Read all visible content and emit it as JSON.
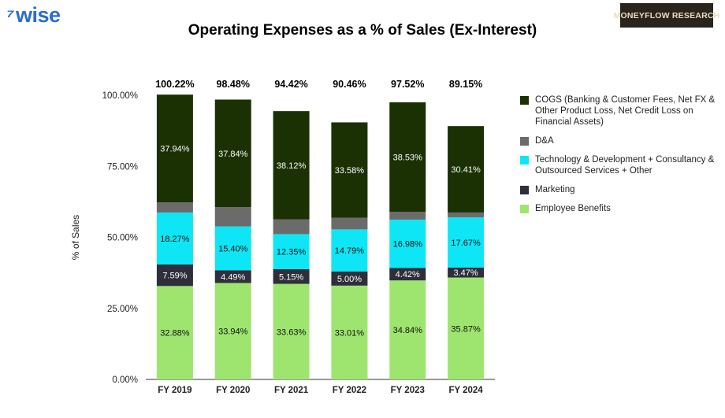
{
  "logos": {
    "wise": "wise",
    "moneyflow": "MONEYFLOW RESEARCH"
  },
  "chart_data": {
    "type": "stacked_bar",
    "title": "Operating Expenses as a % of Sales (Ex-Interest)",
    "ylabel": "% of Sales",
    "ylim": [
      0,
      100
    ],
    "yticks": [
      "0.00%",
      "25.00%",
      "50.00%",
      "75.00%",
      "100.00%"
    ],
    "categories": [
      "FY 2019",
      "FY 2020",
      "FY 2021",
      "FY 2022",
      "FY 2023",
      "FY 2024"
    ],
    "totals": [
      "100.22%",
      "98.48%",
      "94.42%",
      "90.46%",
      "97.52%",
      "89.15%"
    ],
    "series": [
      {
        "name": "Employee Benefits",
        "color": "#9de56f",
        "values": [
          32.88,
          33.94,
          33.63,
          33.01,
          34.84,
          35.87
        ],
        "labels": [
          "32.88%",
          "33.94%",
          "33.63%",
          "33.01%",
          "34.84%",
          "35.87%"
        ]
      },
      {
        "name": "Marketing",
        "color": "#2e2f3a",
        "values": [
          7.59,
          4.49,
          5.15,
          5.0,
          4.42,
          3.47
        ],
        "labels": [
          "7.59%",
          "4.49%",
          "5.15%",
          "5.00%",
          "4.42%",
          "3.47%"
        ]
      },
      {
        "name": "Technology & Development + Consultancy & Outsourced Services + Other",
        "color": "#0ee6f5",
        "values": [
          18.27,
          15.4,
          12.35,
          14.79,
          16.98,
          17.67
        ],
        "labels": [
          "18.27%",
          "15.40%",
          "12.35%",
          "14.79%",
          "16.98%",
          "17.67%"
        ]
      },
      {
        "name": "D&A",
        "color": "#6b6b6b",
        "values": [
          3.54,
          6.81,
          5.17,
          4.08,
          2.75,
          1.73
        ],
        "labels": [
          "",
          "",
          "",
          "",
          "",
          ""
        ]
      },
      {
        "name": "COGS (Banking & Customer Fees, Net FX & Other Product Loss, Net Credit Loss on Financial Assets)",
        "color": "#1b3104",
        "values": [
          37.94,
          37.84,
          38.12,
          33.58,
          38.53,
          30.41
        ],
        "labels": [
          "37.94%",
          "37.84%",
          "38.12%",
          "33.58%",
          "38.53%",
          "30.41%"
        ]
      }
    ],
    "legend_order": [
      4,
      3,
      2,
      1,
      0
    ],
    "legend_position": "right",
    "grid": false
  }
}
